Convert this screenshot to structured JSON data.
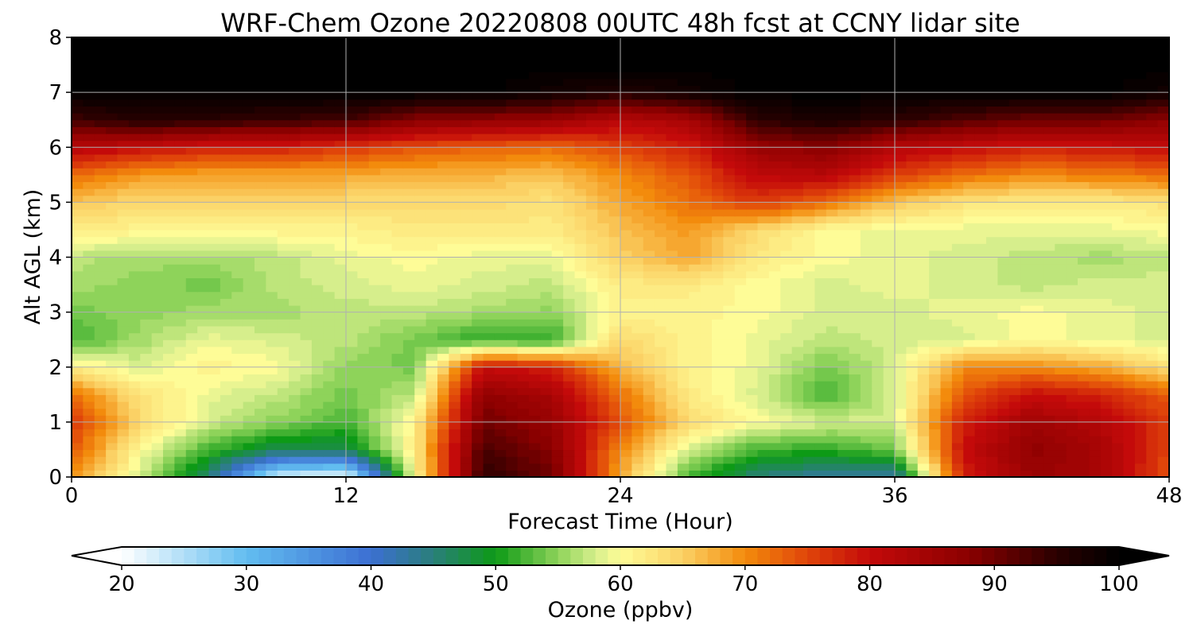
{
  "chart_data": {
    "type": "heatmap",
    "title": "WRF-Chem Ozone  20220808 00UTC 48h fcst at CCNY lidar site",
    "xlabel": "Forecast Time (Hour)",
    "ylabel": "Alt AGL (km)",
    "xlim": [
      0,
      48
    ],
    "ylim": [
      0,
      8
    ],
    "xticks": [
      "0",
      "12",
      "24",
      "36",
      "48"
    ],
    "yticks": [
      "0",
      "1",
      "2",
      "3",
      "4",
      "5",
      "6",
      "7",
      "8"
    ],
    "grid": true,
    "colorbar": {
      "label": "Ozone  (ppbv)",
      "range": [
        20,
        100
      ],
      "ticks": [
        "20",
        "30",
        "40",
        "50",
        "60",
        "70",
        "80",
        "90",
        "100"
      ],
      "extend": "both",
      "stops": [
        {
          "v": 20,
          "color": "#ffffff"
        },
        {
          "v": 30,
          "color": "#62bdf0"
        },
        {
          "v": 40,
          "color": "#3c6fd2"
        },
        {
          "v": 45,
          "color": "#2a7f7a"
        },
        {
          "v": 50,
          "color": "#0d9a16"
        },
        {
          "v": 55,
          "color": "#8ed35a"
        },
        {
          "v": 58,
          "color": "#d6ee8c"
        },
        {
          "v": 60,
          "color": "#fefc97"
        },
        {
          "v": 65,
          "color": "#fbd165"
        },
        {
          "v": 70,
          "color": "#f38b0c"
        },
        {
          "v": 75,
          "color": "#e0450a"
        },
        {
          "v": 80,
          "color": "#c40a0a"
        },
        {
          "v": 88,
          "color": "#8a0000"
        },
        {
          "v": 95,
          "color": "#2a0000"
        },
        {
          "v": 100,
          "color": "#000000"
        }
      ]
    },
    "altitudes_km": [
      0,
      0.5,
      1,
      1.5,
      2,
      2.5,
      3,
      3.5,
      4,
      4.5,
      5,
      5.5,
      6,
      6.5,
      7,
      7.5,
      8
    ],
    "times_h": [
      0,
      3,
      6,
      9,
      12,
      15,
      18,
      21,
      24,
      27,
      30,
      33,
      36,
      39,
      42,
      45,
      48
    ],
    "values_ppbv": [
      [
        70,
        58,
        45,
        22,
        20,
        60,
        95,
        90,
        68,
        52,
        45,
        43,
        42,
        78,
        86,
        84,
        74
      ],
      [
        74,
        60,
        52,
        47,
        47,
        62,
        93,
        88,
        70,
        58,
        52,
        51,
        54,
        80,
        87,
        84,
        75
      ],
      [
        76,
        64,
        58,
        55,
        52,
        61,
        90,
        86,
        74,
        64,
        60,
        58,
        58,
        78,
        85,
        82,
        76
      ],
      [
        72,
        63,
        59,
        57,
        54,
        57,
        87,
        84,
        72,
        62,
        58,
        52,
        58,
        74,
        80,
        78,
        73
      ],
      [
        62,
        58,
        61,
        60,
        55,
        54,
        80,
        78,
        67,
        61,
        59,
        54,
        58,
        70,
        70,
        68,
        63
      ],
      [
        52,
        56,
        59,
        58,
        57,
        54,
        51,
        51,
        64,
        61,
        59,
        57,
        58,
        58,
        60,
        59,
        58
      ],
      [
        54,
        55,
        56,
        56,
        57,
        57,
        56,
        55,
        61,
        61,
        60,
        58,
        58,
        59,
        60,
        59,
        58
      ],
      [
        56,
        55,
        54,
        57,
        58,
        59,
        58,
        57,
        62,
        62,
        60,
        58,
        59,
        58,
        57,
        58,
        58
      ],
      [
        57,
        56,
        56,
        57,
        59,
        60,
        59,
        59,
        65,
        68,
        62,
        60,
        59,
        58,
        57,
        56,
        57
      ],
      [
        62,
        61,
        61,
        61,
        61,
        62,
        62,
        62,
        66,
        69,
        64,
        60,
        59,
        59,
        59,
        59,
        60
      ],
      [
        66,
        64,
        64,
        64,
        64,
        64,
        64,
        63,
        68,
        72,
        76,
        72,
        66,
        63,
        62,
        62,
        63
      ],
      [
        72,
        69,
        68,
        68,
        68,
        67,
        67,
        66,
        70,
        74,
        81,
        82,
        76,
        72,
        70,
        71,
        72
      ],
      [
        82,
        80,
        78,
        78,
        76,
        74,
        73,
        72,
        75,
        78,
        86,
        88,
        82,
        80,
        78,
        79,
        80
      ],
      [
        93,
        96,
        95,
        94,
        93,
        88,
        87,
        86,
        82,
        84,
        95,
        97,
        95,
        92,
        90,
        90,
        87
      ],
      [
        100,
        100,
        100,
        100,
        100,
        100,
        100,
        98,
        96,
        98,
        100,
        100,
        100,
        100,
        100,
        100,
        98
      ],
      [
        100,
        100,
        100,
        100,
        100,
        100,
        100,
        100,
        100,
        100,
        100,
        100,
        100,
        100,
        100,
        100,
        100
      ],
      [
        100,
        100,
        100,
        100,
        100,
        100,
        100,
        100,
        100,
        100,
        100,
        100,
        100,
        100,
        100,
        100,
        100
      ]
    ]
  }
}
